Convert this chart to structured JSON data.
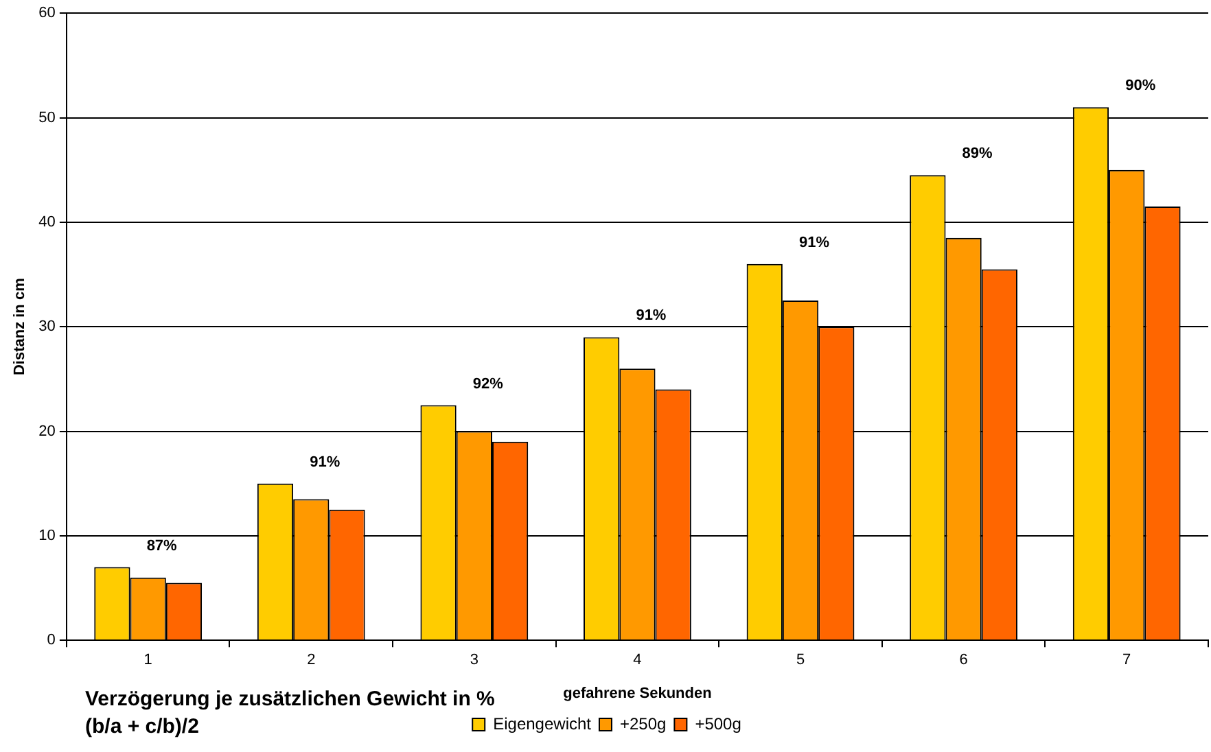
{
  "chart_data": {
    "type": "bar",
    "xlabel": "gefahrene Sekunden",
    "ylabel": "Distanz in cm",
    "categories": [
      "1",
      "2",
      "3",
      "4",
      "5",
      "6",
      "7"
    ],
    "series": [
      {
        "name": "Eigengewicht",
        "color": "#ffcc00",
        "values": [
          7,
          15,
          22.5,
          29,
          36,
          44.5,
          51
        ]
      },
      {
        "name": "+250g",
        "color": "#ff9900",
        "values": [
          6,
          13.5,
          20,
          26,
          32.5,
          38.5,
          45
        ]
      },
      {
        "name": "+500g",
        "color": "#ff6600",
        "values": [
          5.5,
          12.5,
          19,
          24,
          30,
          35.5,
          41.5
        ]
      }
    ],
    "ylim": [
      0,
      60
    ],
    "yticks": [
      0,
      10,
      20,
      30,
      40,
      50,
      60
    ],
    "grid": "y",
    "legend": "bottom",
    "annotations": [
      "87%",
      "91%",
      "92%",
      "91%",
      "91%",
      "89%",
      "90%",
      "Verzögerung je zusätzlichen Gewicht in %\n(b/a + c/b)/2"
    ]
  }
}
